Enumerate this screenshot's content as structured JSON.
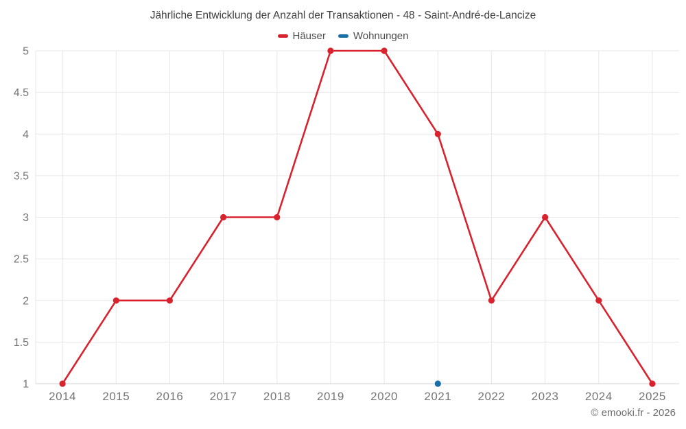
{
  "chart_data": {
    "type": "line",
    "title": "Jährliche Entwicklung der Anzahl der Transaktionen - 48 - Saint-André-de-Lancize",
    "categories": [
      "2014",
      "2015",
      "2016",
      "2017",
      "2018",
      "2019",
      "2020",
      "2021",
      "2022",
      "2023",
      "2024",
      "2025"
    ],
    "series": [
      {
        "name": "Häuser",
        "color": "#d8232e",
        "values": [
          1,
          2,
          2,
          3,
          3,
          5,
          5,
          4,
          2,
          3,
          2,
          1
        ]
      },
      {
        "name": "Wohnungen",
        "color": "#1b6fa8",
        "values": [
          null,
          null,
          null,
          null,
          null,
          null,
          null,
          1,
          null,
          null,
          null,
          null
        ]
      }
    ],
    "ylim": [
      1,
      5
    ],
    "yticks": [
      1,
      1.5,
      2,
      2.5,
      3,
      3.5,
      4,
      4.5,
      5
    ],
    "xlabel": "",
    "ylabel": "",
    "grid": true,
    "legend_position": "top"
  },
  "colors": {
    "background": "#ffffff",
    "grid": "#e7e7e7",
    "axis": "#d2d2d2",
    "tick_label": "#757575",
    "title": "#3f3f3f",
    "legend_label": "#4c4c4c",
    "footer": "#6e6e6e"
  },
  "footer": {
    "copyright": "© emooki.fr - 2026"
  }
}
